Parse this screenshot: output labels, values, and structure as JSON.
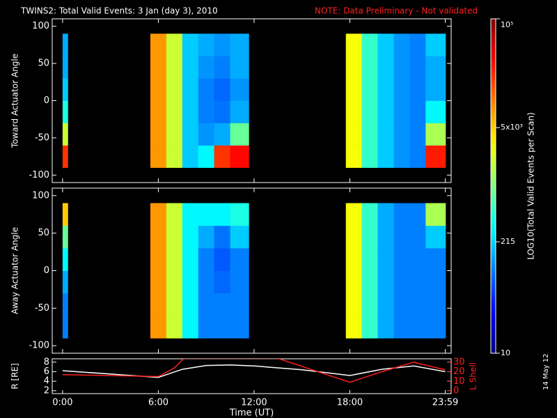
{
  "title": "TWINS2: Total Valid Events:  3 Jan (day   3), 2010",
  "note": "NOTE: Data Preliminary - Not validated",
  "date_stamp": "14 May 12",
  "colorbar": {
    "label": "LOG10(Total Valid Events per Scan)",
    "log": true,
    "zlim": [
      10,
      100000
    ],
    "zticks": [
      10,
      215,
      {
        "value": 5000,
        "label": "5x10³"
      },
      {
        "value": 100000,
        "label": "10⁵"
      }
    ]
  },
  "chart_data": [
    {
      "type": "heatmap",
      "ylabel": "Toward Actuator Angle",
      "x_bins": [
        0,
        0.33,
        5.5,
        6.5,
        7.5,
        8.5,
        9.5,
        10.5,
        11.67,
        17.75,
        18.75,
        19.75,
        20.75,
        21.75,
        22.75,
        24
      ],
      "y_bins": [
        -90,
        -60,
        -30,
        0,
        30,
        60,
        90
      ],
      "xlim": [
        -0.65,
        24.35
      ],
      "ylim": [
        -110,
        110
      ],
      "yticks": [
        -100,
        -50,
        0,
        50,
        100
      ],
      "values": [
        [
          20000,
          2000,
          400,
          200,
          150,
          150
        ],
        null,
        [
          8000,
          8000,
          8000,
          8000,
          8000,
          8000
        ],
        [
          2000,
          2000,
          2000,
          2000,
          2000,
          2000
        ],
        [
          200,
          200,
          200,
          200,
          200,
          200
        ],
        [
          300,
          120,
          100,
          100,
          120,
          150
        ],
        [
          20000,
          150,
          90,
          80,
          100,
          120
        ],
        [
          30000,
          800,
          150,
          120,
          150,
          150
        ],
        null,
        [
          3000,
          3000,
          3000,
          3000,
          3000,
          3000
        ],
        [
          500,
          500,
          500,
          500,
          500,
          500
        ],
        [
          200,
          200,
          200,
          200,
          200,
          200
        ],
        [
          120,
          120,
          120,
          120,
          120,
          120
        ],
        [
          100,
          100,
          100,
          100,
          100,
          100
        ],
        [
          25000,
          1500,
          300,
          150,
          150,
          200
        ]
      ]
    },
    {
      "type": "heatmap",
      "ylabel": "Away Actuator Angle",
      "x_bins": [
        0,
        0.33,
        5.5,
        6.5,
        7.5,
        8.5,
        9.5,
        10.5,
        11.67,
        17.75,
        18.75,
        19.75,
        20.75,
        21.75,
        22.75,
        24
      ],
      "y_bins": [
        -90,
        -60,
        -30,
        0,
        30,
        60,
        90
      ],
      "xlim": [
        -0.65,
        24.35
      ],
      "ylim": [
        -110,
        110
      ],
      "yticks": [
        -100,
        -50,
        0,
        50,
        100
      ],
      "values": [
        [
          100,
          100,
          150,
          300,
          800,
          5000
        ],
        null,
        [
          8000,
          8000,
          8000,
          8000,
          8000,
          8000
        ],
        [
          2000,
          2000,
          2000,
          2000,
          2000,
          2000
        ],
        [
          300,
          300,
          300,
          300,
          300,
          300
        ],
        [
          100,
          100,
          100,
          100,
          150,
          300
        ],
        [
          100,
          100,
          80,
          70,
          90,
          300
        ],
        [
          100,
          100,
          100,
          100,
          200,
          400
        ],
        null,
        [
          3000,
          3000,
          3000,
          3000,
          3000,
          3000
        ],
        [
          500,
          500,
          500,
          500,
          500,
          500
        ],
        [
          150,
          150,
          150,
          150,
          150,
          150
        ],
        [
          100,
          100,
          100,
          100,
          100,
          100
        ],
        [
          100,
          100,
          100,
          100,
          100,
          100
        ],
        [
          100,
          100,
          100,
          100,
          200,
          1500
        ]
      ]
    },
    {
      "type": "line",
      "xlabel": "Time (UT)",
      "ylabel": "R [RE]",
      "y2label": "L Shell",
      "xlim": [
        -0.65,
        24.35
      ],
      "ylim": [
        1.4,
        8.7
      ],
      "y2lim": [
        -2.9,
        33.6
      ],
      "xticks": [
        {
          "value": 0,
          "label": "0:00"
        },
        {
          "value": 6,
          "label": "6:00"
        },
        {
          "value": 12,
          "label": "12:00"
        },
        {
          "value": 18,
          "label": "18:00"
        },
        {
          "value": 23.98,
          "label": "23:59"
        }
      ],
      "yticks": [
        2,
        4,
        6,
        8
      ],
      "y2ticks": [
        0,
        10,
        20,
        30
      ],
      "series": [
        {
          "name": "R",
          "color": "#ffffff",
          "x": [
            0,
            3,
            6,
            7.5,
            9,
            10.5,
            12,
            15,
            18,
            20,
            22,
            23.98
          ],
          "values": [
            6.2,
            5.5,
            4.8,
            6.5,
            7.3,
            7.4,
            7.2,
            6.4,
            5.2,
            6.5,
            7.2,
            6.0
          ]
        },
        {
          "name": "L Shell",
          "color": "#ff2020",
          "axis": "y2",
          "x": [
            0,
            3,
            6,
            7,
            7.6,
            13.5,
            16,
            18,
            20,
            22,
            23.98
          ],
          "values": [
            17,
            16,
            15,
            24,
            34,
            34,
            20,
            9,
            20,
            30,
            22
          ]
        }
      ]
    }
  ]
}
